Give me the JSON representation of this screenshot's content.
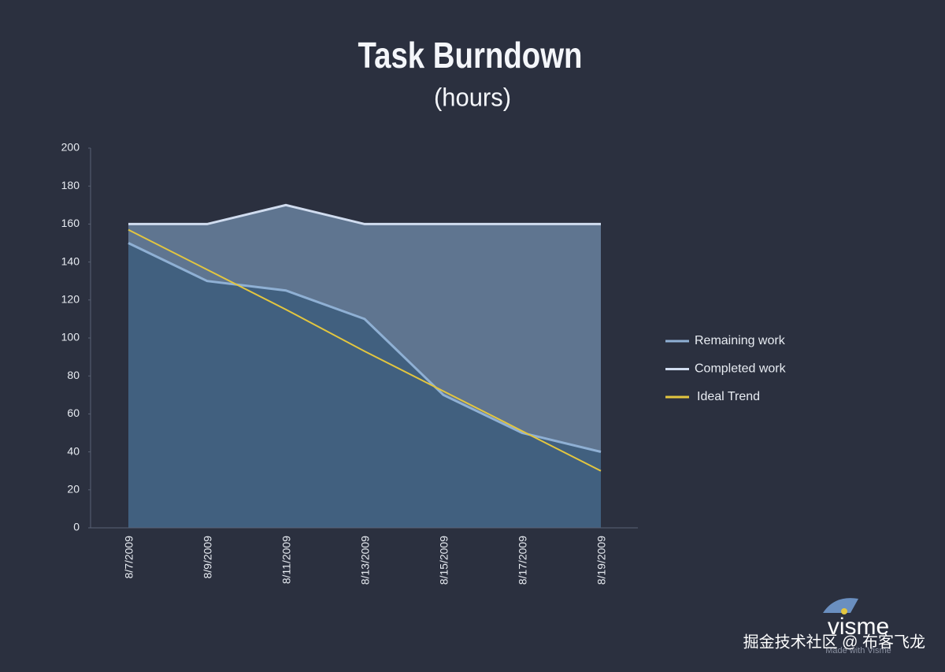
{
  "chart_data": {
    "type": "line",
    "title": "Task Burndown",
    "subtitle": "(hours)",
    "categories": [
      "8/7/2009",
      "8/9/2009",
      "8/11/2009",
      "8/13/2009",
      "8/15/2009",
      "8/17/2009",
      "8/19/2009"
    ],
    "series": [
      {
        "name": "Remaining work",
        "color": "#8fb0d4",
        "fill": "#41607f",
        "values": [
          150,
          130,
          125,
          110,
          70,
          50,
          40
        ]
      },
      {
        "name": "Completed work",
        "color": "#d0dcef",
        "fill": "#5f7590",
        "values": [
          160,
          160,
          170,
          160,
          160,
          160,
          160
        ]
      },
      {
        "name": "Ideal Trend",
        "color": "#e3c63f",
        "values": [
          157,
          136,
          115,
          93,
          72,
          51,
          30
        ]
      }
    ],
    "ylim": [
      0,
      200
    ],
    "yticks": [
      0,
      20,
      40,
      60,
      80,
      100,
      120,
      140,
      160,
      180,
      200
    ],
    "legend": "right",
    "logo": "visme",
    "logo_caption": "Made with Visme",
    "watermark": "掘金技术社区 @ 布客飞龙"
  }
}
